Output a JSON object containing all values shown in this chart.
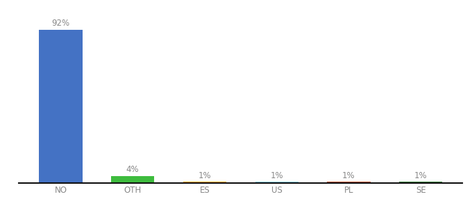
{
  "categories": [
    "NO",
    "OTH",
    "ES",
    "US",
    "PL",
    "SE"
  ],
  "values": [
    92,
    4,
    1,
    1,
    1,
    1
  ],
  "bar_colors": [
    "#4472C4",
    "#3EBC3E",
    "#FFA500",
    "#87CEEB",
    "#B94A1A",
    "#2E7D32"
  ],
  "labels": [
    "92%",
    "4%",
    "1%",
    "1%",
    "1%",
    "1%"
  ],
  "background_color": "#ffffff",
  "ylim": [
    0,
    100
  ],
  "bar_width": 0.6,
  "label_fontsize": 8.5,
  "tick_fontsize": 8.5,
  "label_color": "#888888",
  "tick_color": "#888888",
  "spine_color": "#111111"
}
